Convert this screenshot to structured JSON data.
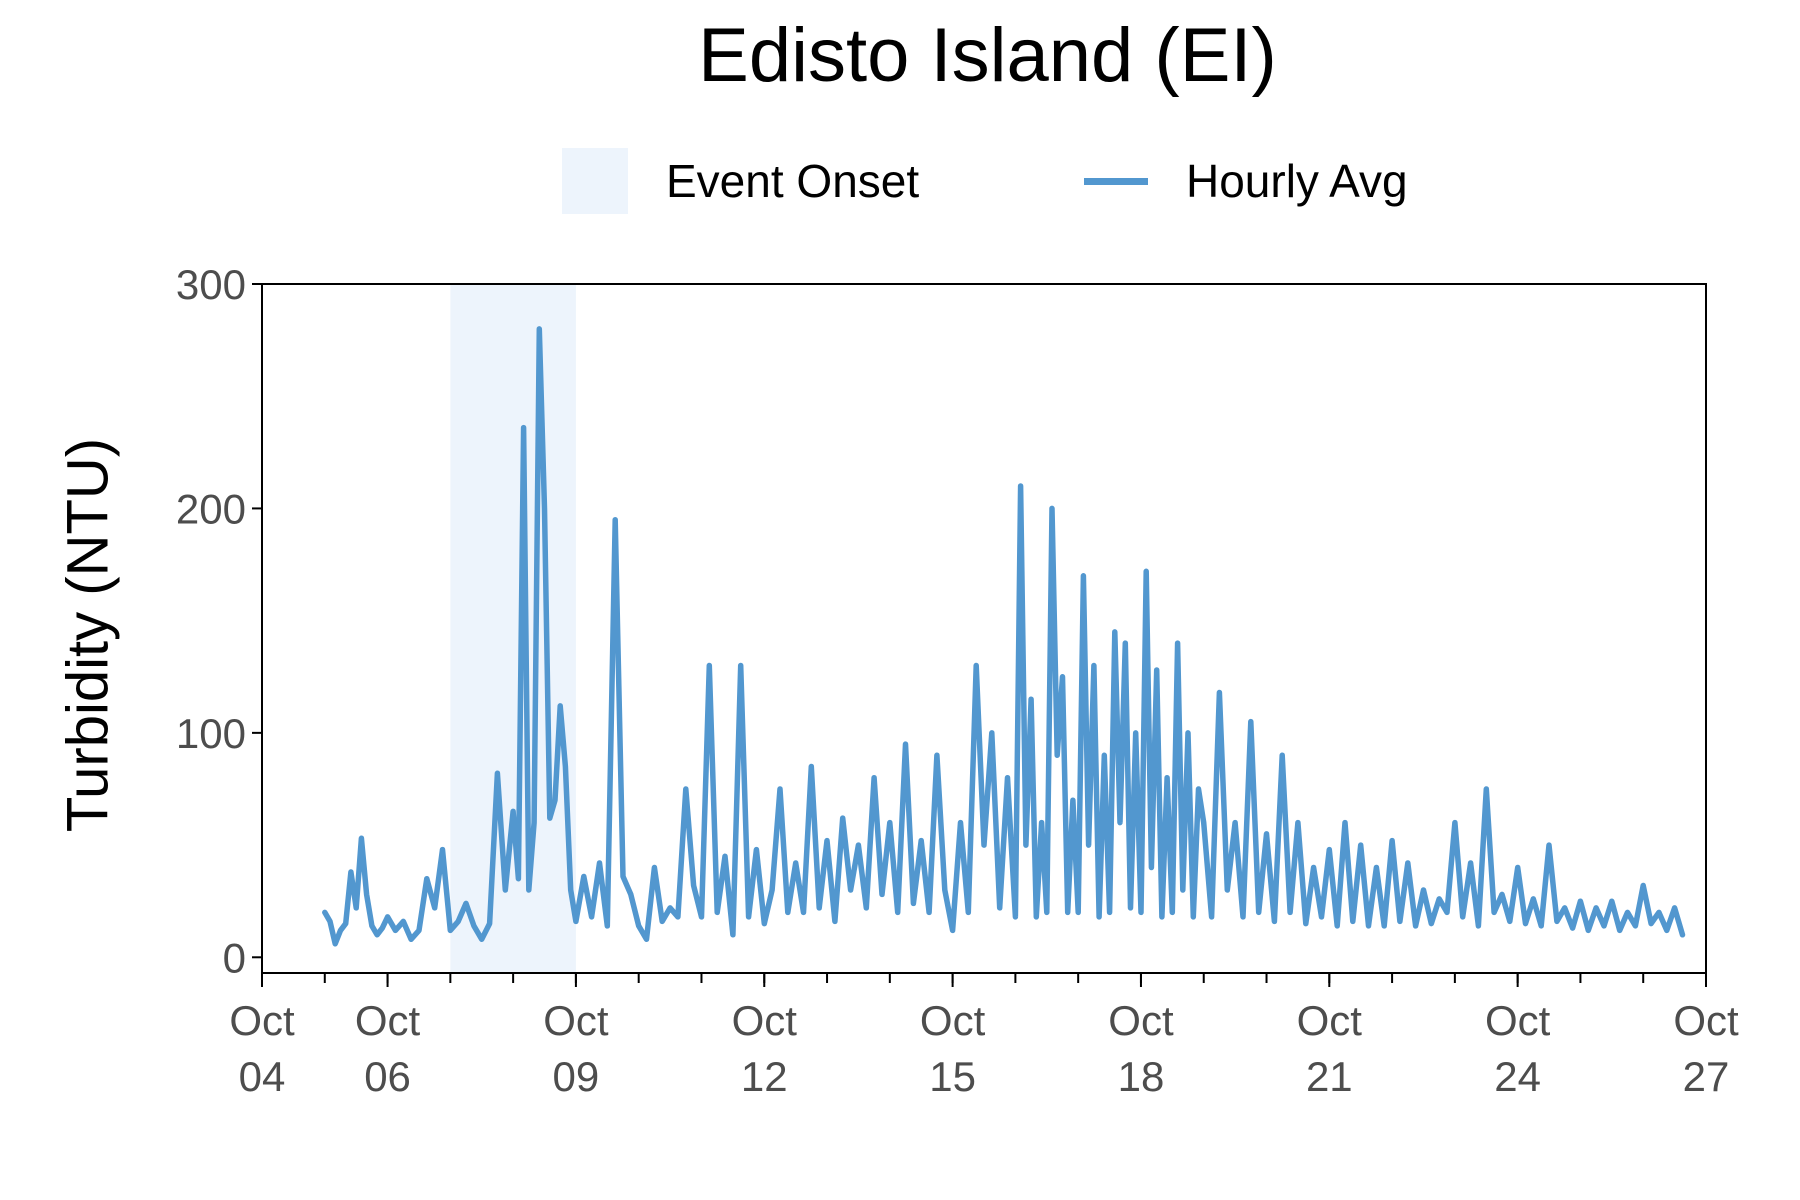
{
  "chart_data": {
    "type": "line",
    "title": "Edisto Island (EI)",
    "ylabel": "Turbidity (NTU)",
    "xlabel": "",
    "ylim": [
      -7,
      300
    ],
    "xlim": [
      "2022-10-04",
      "2022-10-27"
    ],
    "yticks": [
      0,
      100,
      200,
      300
    ],
    "xticks": [
      {
        "date": "2022-10-04",
        "label": [
          "Oct",
          "04"
        ]
      },
      {
        "date": "2022-10-06",
        "label": [
          "Oct",
          "06"
        ]
      },
      {
        "date": "2022-10-09",
        "label": [
          "Oct",
          "09"
        ]
      },
      {
        "date": "2022-10-12",
        "label": [
          "Oct",
          "12"
        ]
      },
      {
        "date": "2022-10-15",
        "label": [
          "Oct",
          "15"
        ]
      },
      {
        "date": "2022-10-18",
        "label": [
          "Oct",
          "18"
        ]
      },
      {
        "date": "2022-10-21",
        "label": [
          "Oct",
          "21"
        ]
      },
      {
        "date": "2022-10-24",
        "label": [
          "Oct",
          "24"
        ]
      },
      {
        "date": "2022-10-27",
        "label": [
          "Oct",
          "27"
        ]
      }
    ],
    "legend": {
      "placement": "top",
      "entries": [
        "Event Onset",
        "Hourly Avg"
      ]
    },
    "grid": false,
    "colors": {
      "line": "#5297cf",
      "event": "#edf4fc",
      "axis": "#000000",
      "tick_text": "#4d4d4d"
    },
    "event_onset": {
      "name": "Event Onset",
      "start": "2022-10-07T00:00",
      "end": "2022-10-09T00:00"
    },
    "series": [
      {
        "name": "Hourly Avg",
        "x": [
          "2022-10-05T00:00",
          "2022-10-05T02:00",
          "2022-10-05T04:00",
          "2022-10-05T06:00",
          "2022-10-05T08:00",
          "2022-10-05T10:00",
          "2022-10-05T12:00",
          "2022-10-05T14:00",
          "2022-10-05T16:00",
          "2022-10-05T18:00",
          "2022-10-05T20:00",
          "2022-10-05T22:00",
          "2022-10-06T00:00",
          "2022-10-06T03:00",
          "2022-10-06T06:00",
          "2022-10-06T09:00",
          "2022-10-06T12:00",
          "2022-10-06T15:00",
          "2022-10-06T18:00",
          "2022-10-06T21:00",
          "2022-10-07T00:00",
          "2022-10-07T03:00",
          "2022-10-07T06:00",
          "2022-10-07T09:00",
          "2022-10-07T12:00",
          "2022-10-07T15:00",
          "2022-10-07T18:00",
          "2022-10-07T21:00",
          "2022-10-08T00:00",
          "2022-10-08T02:00",
          "2022-10-08T04:00",
          "2022-10-08T06:00",
          "2022-10-08T08:00",
          "2022-10-08T10:00",
          "2022-10-08T12:00",
          "2022-10-08T14:00",
          "2022-10-08T16:00",
          "2022-10-08T18:00",
          "2022-10-08T20:00",
          "2022-10-08T22:00",
          "2022-10-09T00:00",
          "2022-10-09T03:00",
          "2022-10-09T06:00",
          "2022-10-09T09:00",
          "2022-10-09T12:00",
          "2022-10-09T15:00",
          "2022-10-09T18:00",
          "2022-10-09T21:00",
          "2022-10-10T00:00",
          "2022-10-10T03:00",
          "2022-10-10T06:00",
          "2022-10-10T09:00",
          "2022-10-10T12:00",
          "2022-10-10T15:00",
          "2022-10-10T18:00",
          "2022-10-10T21:00",
          "2022-10-11T00:00",
          "2022-10-11T03:00",
          "2022-10-11T06:00",
          "2022-10-11T09:00",
          "2022-10-11T12:00",
          "2022-10-11T15:00",
          "2022-10-11T18:00",
          "2022-10-11T21:00",
          "2022-10-12T00:00",
          "2022-10-12T03:00",
          "2022-10-12T06:00",
          "2022-10-12T09:00",
          "2022-10-12T12:00",
          "2022-10-12T15:00",
          "2022-10-12T18:00",
          "2022-10-12T21:00",
          "2022-10-13T00:00",
          "2022-10-13T03:00",
          "2022-10-13T06:00",
          "2022-10-13T09:00",
          "2022-10-13T12:00",
          "2022-10-13T15:00",
          "2022-10-13T18:00",
          "2022-10-13T21:00",
          "2022-10-14T00:00",
          "2022-10-14T03:00",
          "2022-10-14T06:00",
          "2022-10-14T09:00",
          "2022-10-14T12:00",
          "2022-10-14T15:00",
          "2022-10-14T18:00",
          "2022-10-14T21:00",
          "2022-10-15T00:00",
          "2022-10-15T03:00",
          "2022-10-15T06:00",
          "2022-10-15T09:00",
          "2022-10-15T12:00",
          "2022-10-15T15:00",
          "2022-10-15T18:00",
          "2022-10-15T21:00",
          "2022-10-16T00:00",
          "2022-10-16T02:00",
          "2022-10-16T04:00",
          "2022-10-16T06:00",
          "2022-10-16T08:00",
          "2022-10-16T10:00",
          "2022-10-16T12:00",
          "2022-10-16T14:00",
          "2022-10-16T16:00",
          "2022-10-16T18:00",
          "2022-10-16T20:00",
          "2022-10-16T22:00",
          "2022-10-17T00:00",
          "2022-10-17T02:00",
          "2022-10-17T04:00",
          "2022-10-17T06:00",
          "2022-10-17T08:00",
          "2022-10-17T10:00",
          "2022-10-17T12:00",
          "2022-10-17T14:00",
          "2022-10-17T16:00",
          "2022-10-17T18:00",
          "2022-10-17T20:00",
          "2022-10-17T22:00",
          "2022-10-18T00:00",
          "2022-10-18T02:00",
          "2022-10-18T04:00",
          "2022-10-18T06:00",
          "2022-10-18T08:00",
          "2022-10-18T10:00",
          "2022-10-18T12:00",
          "2022-10-18T14:00",
          "2022-10-18T16:00",
          "2022-10-18T18:00",
          "2022-10-18T20:00",
          "2022-10-18T22:00",
          "2022-10-19T00:00",
          "2022-10-19T03:00",
          "2022-10-19T06:00",
          "2022-10-19T09:00",
          "2022-10-19T12:00",
          "2022-10-19T15:00",
          "2022-10-19T18:00",
          "2022-10-19T21:00",
          "2022-10-20T00:00",
          "2022-10-20T03:00",
          "2022-10-20T06:00",
          "2022-10-20T09:00",
          "2022-10-20T12:00",
          "2022-10-20T15:00",
          "2022-10-20T18:00",
          "2022-10-20T21:00",
          "2022-10-21T00:00",
          "2022-10-21T03:00",
          "2022-10-21T06:00",
          "2022-10-21T09:00",
          "2022-10-21T12:00",
          "2022-10-21T15:00",
          "2022-10-21T18:00",
          "2022-10-21T21:00",
          "2022-10-22T00:00",
          "2022-10-22T03:00",
          "2022-10-22T06:00",
          "2022-10-22T09:00",
          "2022-10-22T12:00",
          "2022-10-22T15:00",
          "2022-10-22T18:00",
          "2022-10-22T21:00",
          "2022-10-23T00:00",
          "2022-10-23T03:00",
          "2022-10-23T06:00",
          "2022-10-23T09:00",
          "2022-10-23T12:00",
          "2022-10-23T15:00",
          "2022-10-23T18:00",
          "2022-10-23T21:00",
          "2022-10-24T00:00",
          "2022-10-24T03:00",
          "2022-10-24T06:00",
          "2022-10-24T09:00",
          "2022-10-24T12:00",
          "2022-10-24T15:00",
          "2022-10-24T18:00",
          "2022-10-24T21:00",
          "2022-10-25T00:00",
          "2022-10-25T03:00",
          "2022-10-25T06:00",
          "2022-10-25T09:00",
          "2022-10-25T12:00",
          "2022-10-25T15:00",
          "2022-10-25T18:00",
          "2022-10-25T21:00",
          "2022-10-26T00:00",
          "2022-10-26T03:00",
          "2022-10-26T06:00",
          "2022-10-26T09:00",
          "2022-10-26T12:00",
          "2022-10-26T15:00"
        ],
        "y": [
          20,
          16,
          6,
          12,
          15,
          38,
          22,
          53,
          28,
          14,
          10,
          13,
          18,
          12,
          16,
          8,
          12,
          35,
          22,
          48,
          12,
          16,
          24,
          14,
          8,
          15,
          82,
          30,
          65,
          35,
          236,
          30,
          60,
          280,
          200,
          62,
          70,
          112,
          85,
          30,
          16,
          36,
          18,
          42,
          14,
          195,
          36,
          28,
          14,
          8,
          40,
          16,
          22,
          18,
          75,
          32,
          18,
          130,
          20,
          45,
          10,
          130,
          18,
          48,
          15,
          30,
          75,
          20,
          42,
          20,
          85,
          22,
          52,
          16,
          62,
          30,
          50,
          22,
          80,
          28,
          60,
          20,
          95,
          24,
          52,
          20,
          90,
          30,
          12,
          60,
          20,
          130,
          50,
          100,
          22,
          80,
          18,
          210,
          50,
          115,
          18,
          60,
          20,
          200,
          90,
          125,
          20,
          70,
          20,
          170,
          50,
          130,
          18,
          90,
          20,
          145,
          60,
          140,
          22,
          100,
          20,
          172,
          40,
          128,
          18,
          80,
          20,
          140,
          30,
          100,
          18,
          75,
          60,
          18,
          118,
          30,
          60,
          18,
          105,
          20,
          55,
          16,
          90,
          20,
          60,
          15,
          40,
          18,
          48,
          14,
          60,
          16,
          50,
          14,
          40,
          14,
          52,
          16,
          42,
          14,
          30,
          15,
          26,
          20,
          60,
          18,
          42,
          14,
          75,
          20,
          28,
          16,
          40,
          15,
          26,
          14,
          50,
          16,
          22,
          13,
          25,
          12,
          22,
          14,
          25,
          12,
          20,
          14,
          32,
          15,
          20,
          12,
          22,
          10
        ]
      }
    ]
  }
}
